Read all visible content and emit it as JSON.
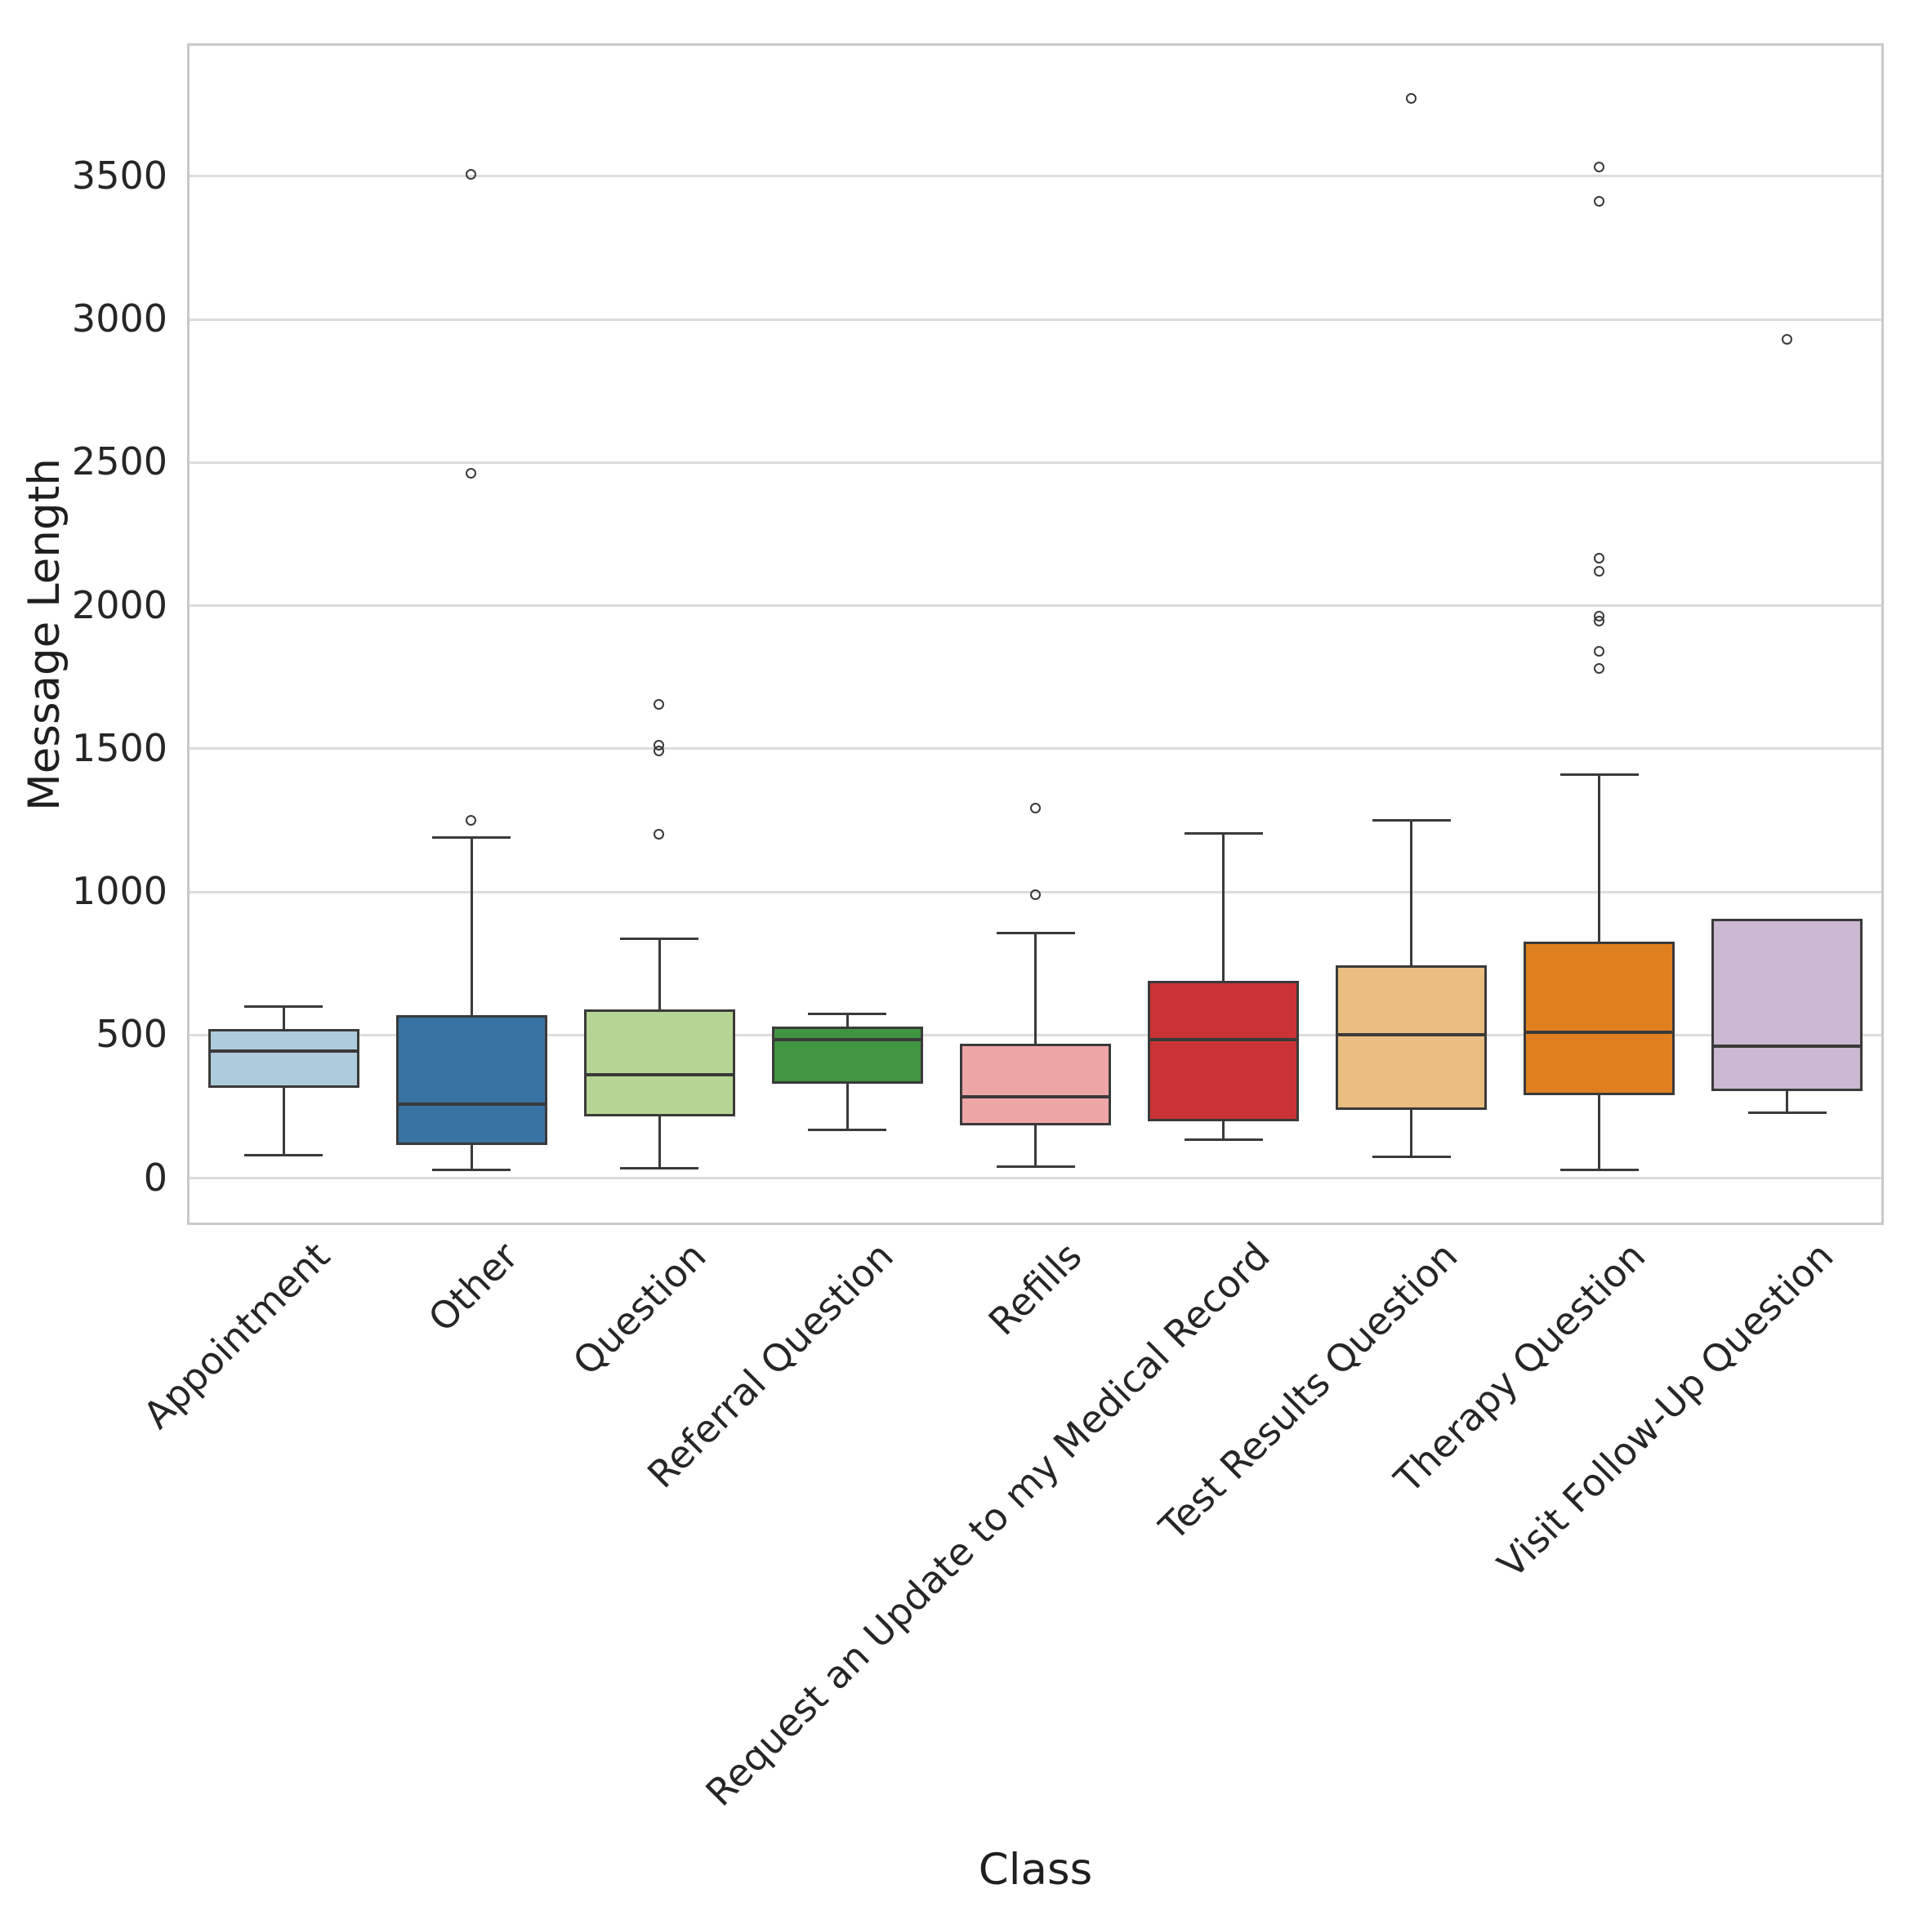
{
  "chart_data": {
    "type": "box",
    "title": "",
    "xlabel": "Class",
    "ylabel": "Message Length",
    "ylim": [
      -155,
      3956
    ],
    "yticks": [
      0,
      500,
      1000,
      1500,
      2000,
      2500,
      3000,
      3500
    ],
    "grid": "horizontal",
    "legend": "none",
    "categories": [
      "Appointment",
      "Other",
      "Question",
      "Referral Question",
      "Refills",
      "Request an Update to my Medical Record",
      "Test Results Question",
      "Therapy Question",
      "Visit Follow-Up Question"
    ],
    "series": [
      {
        "name": "Appointment",
        "color": "#aecbdd",
        "whisker_low": 80,
        "q1": 315,
        "median": 445,
        "q3": 520,
        "whisker_high": 600,
        "outliers": []
      },
      {
        "name": "Other",
        "color": "#3873a3",
        "whisker_low": 30,
        "q1": 115,
        "median": 260,
        "q3": 570,
        "whisker_high": 1190,
        "outliers": [
          1250,
          2460,
          3505
        ]
      },
      {
        "name": "Question",
        "color": "#b4d593",
        "whisker_low": 35,
        "q1": 215,
        "median": 360,
        "q3": 590,
        "whisker_high": 835,
        "outliers": [
          1200,
          1490,
          1512,
          1655
        ]
      },
      {
        "name": "Referral Question",
        "color": "#419440",
        "whisker_low": 170,
        "q1": 330,
        "median": 485,
        "q3": 530,
        "whisker_high": 575,
        "outliers": []
      },
      {
        "name": "Refills",
        "color": "#eda6a5",
        "whisker_low": 40,
        "q1": 185,
        "median": 285,
        "q3": 470,
        "whisker_high": 855,
        "outliers": [
          990,
          1290
        ]
      },
      {
        "name": "Request an Update to my Medical Record",
        "color": "#ca3335",
        "whisker_low": 135,
        "q1": 200,
        "median": 485,
        "q3": 690,
        "whisker_high": 1205,
        "outliers": []
      },
      {
        "name": "Test Results Question",
        "color": "#eabd80",
        "whisker_low": 75,
        "q1": 240,
        "median": 500,
        "q3": 745,
        "whisker_high": 1250,
        "outliers": [
          3770
        ]
      },
      {
        "name": "Therapy Question",
        "color": "#df8020",
        "whisker_low": 30,
        "q1": 290,
        "median": 510,
        "q3": 825,
        "whisker_high": 1410,
        "outliers": [
          1780,
          1840,
          1945,
          1962,
          2120,
          2165,
          3410,
          3530
        ]
      },
      {
        "name": "Visit Follow-Up Question",
        "color": "#ccb8d2",
        "whisker_low": 230,
        "q1": 305,
        "median": 460,
        "q3": 905,
        "whisker_high": 905,
        "outliers": [
          2930
        ]
      }
    ]
  },
  "colors": {
    "box_edge": "#3a3a3a",
    "median": "#3a3a3a",
    "whisker": "#3a3a3a",
    "outlier_edge": "#3a3a3a",
    "grid": "#dcdcdc",
    "spine": "#c9c9c9",
    "tick_text": "#262626",
    "label_text": "#1f1f1f",
    "background": "#ffffff"
  }
}
